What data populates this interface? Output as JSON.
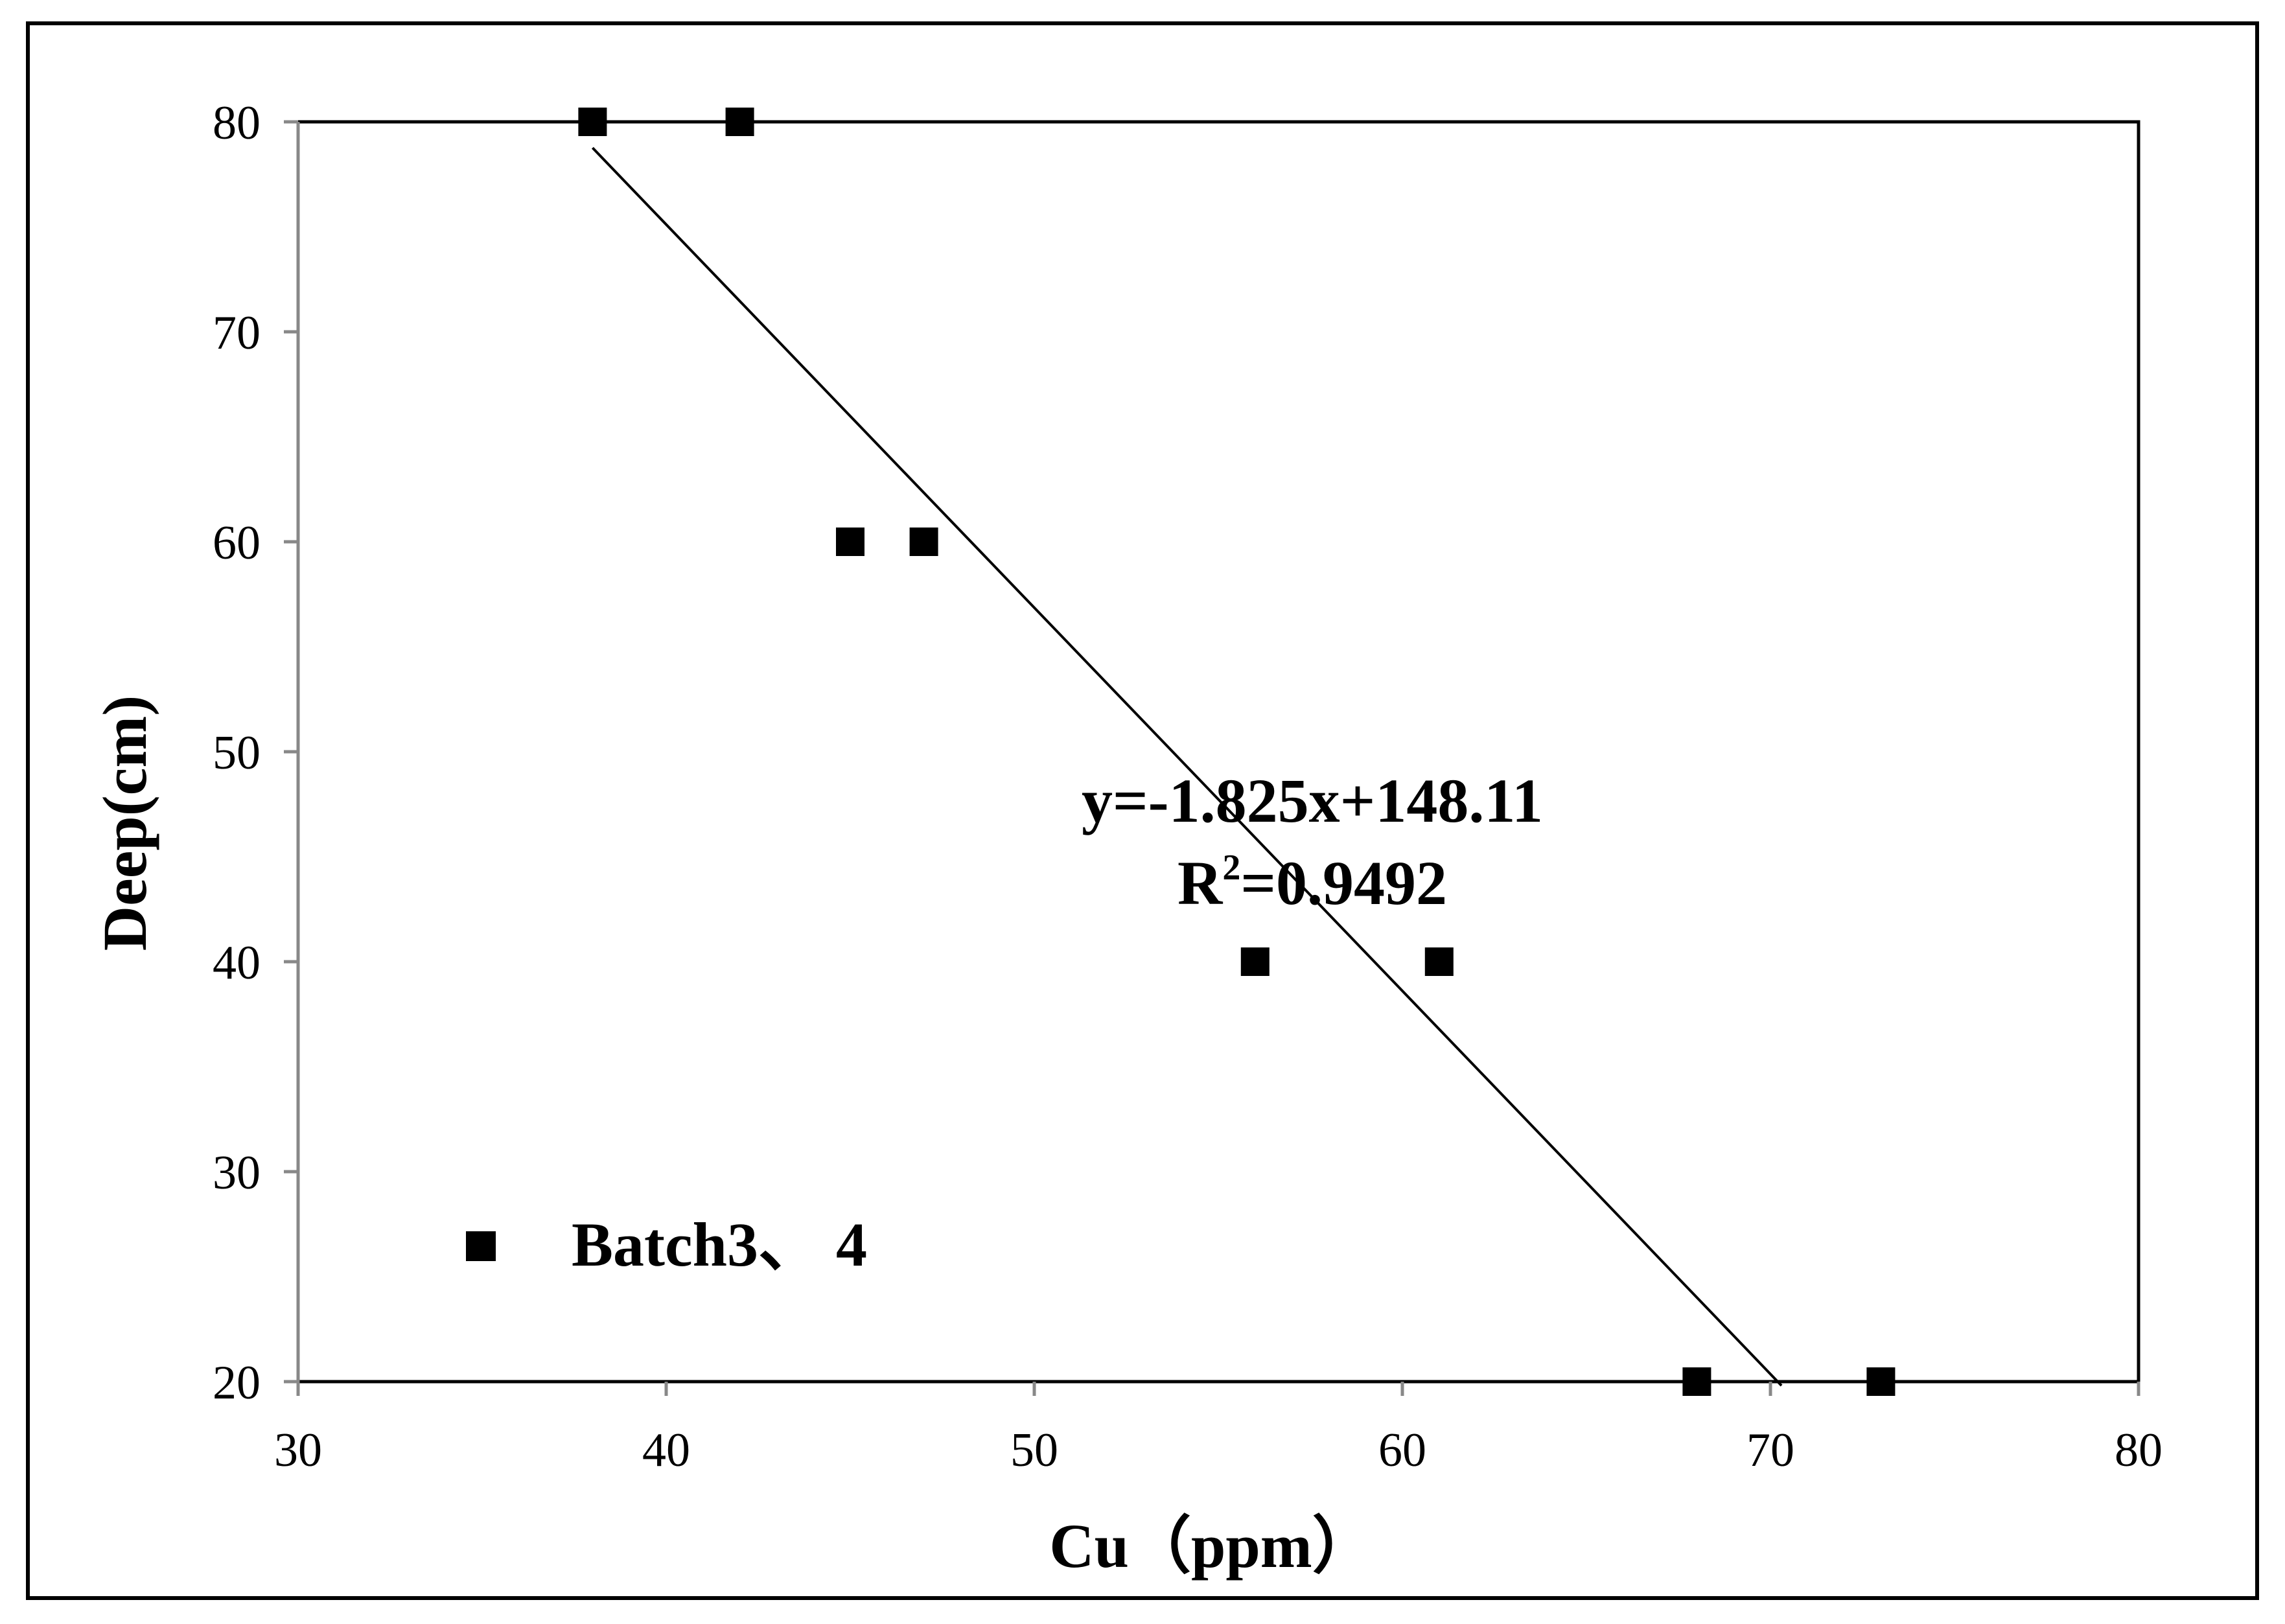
{
  "chart_data": {
    "type": "scatter",
    "xlabel": "Cu（ppm）",
    "ylabel": "Deep(cm)",
    "xlim": [
      30,
      80
    ],
    "ylim": [
      20,
      80
    ],
    "x_ticks": [
      "30",
      "40",
      "50",
      "60",
      "70",
      "80"
    ],
    "y_ticks": [
      "20",
      "30",
      "40",
      "50",
      "60",
      "70",
      "80"
    ],
    "series": [
      {
        "name": "Batch3、 4",
        "marker": "square",
        "color": "#000000",
        "x": [
          38,
          42,
          45,
          47,
          56,
          61,
          68,
          73
        ],
        "y": [
          80,
          80,
          60,
          60,
          40,
          40,
          20,
          20
        ]
      }
    ],
    "trendline": {
      "slope": -1.825,
      "intercept": 148.11,
      "x_range": [
        38,
        70.3
      ],
      "equation_label": "y=-1.825x+148.11",
      "r2_label": "R",
      "r2_sup": "2",
      "r2_value": "=0.9492"
    },
    "legend": {
      "placement": "bottom-left",
      "label": "Batch3、 4"
    },
    "grid": false
  }
}
